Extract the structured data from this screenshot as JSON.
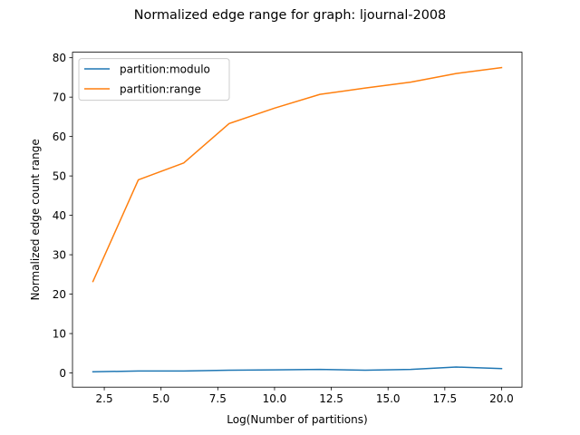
{
  "chart_data": {
    "type": "line",
    "title": "Normalized edge range for graph: ljournal-2008",
    "xlabel": "Log(Number of partitions)",
    "ylabel": "Normalized edge count range",
    "xlim": [
      1.1,
      20.9
    ],
    "ylim": [
      -3.6,
      81.4
    ],
    "xticks": [
      2.5,
      5.0,
      7.5,
      10.0,
      12.5,
      15.0,
      17.5,
      20.0
    ],
    "xtick_labels": [
      "2.5",
      "5.0",
      "7.5",
      "10.0",
      "12.5",
      "15.0",
      "17.5",
      "20.0"
    ],
    "yticks": [
      0,
      10,
      20,
      30,
      40,
      50,
      60,
      70,
      80
    ],
    "ytick_labels": [
      "0",
      "10",
      "20",
      "30",
      "40",
      "50",
      "60",
      "70",
      "80"
    ],
    "grid": false,
    "legend_position": "top-left",
    "x": [
      2,
      4,
      6,
      8,
      10,
      12,
      14,
      16,
      18,
      20
    ],
    "series": [
      {
        "name": "partition:modulo",
        "color": "#1f77b4",
        "values": [
          0.3,
          0.5,
          0.5,
          0.7,
          0.8,
          0.9,
          0.7,
          0.9,
          1.5,
          1.1
        ]
      },
      {
        "name": "partition:range",
        "color": "#ff7f0e",
        "values": [
          23.2,
          49.0,
          53.3,
          63.3,
          67.2,
          70.7,
          72.3,
          73.8,
          76.0,
          77.5
        ]
      }
    ]
  }
}
